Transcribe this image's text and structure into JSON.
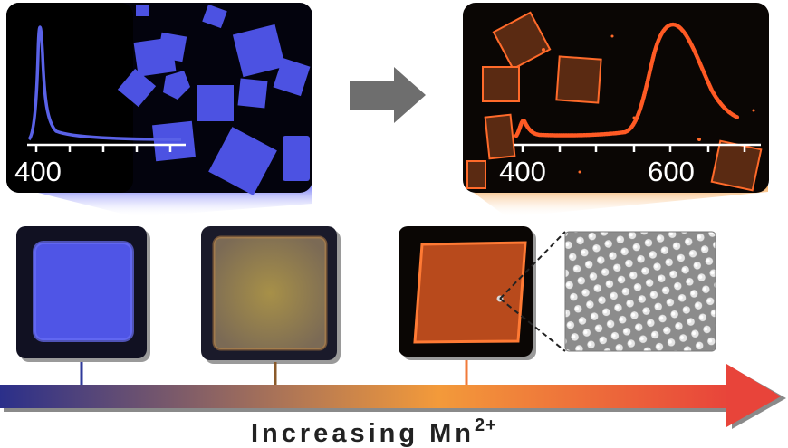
{
  "left_panel": {
    "axis_ticks": [
      "400"
    ],
    "emission_color": "#5a62e8"
  },
  "right_panel": {
    "axis_ticks": [
      "400",
      "600"
    ],
    "emission_color": "#ff5a24"
  },
  "arrow_color": "#6e6e6e",
  "crystal_tiles": [
    {
      "name": "blue-crystal",
      "color": "#4f55e6"
    },
    {
      "name": "mixed-crystal",
      "color": "#8d7a4a"
    },
    {
      "name": "orange-crystal",
      "color": "#c6511e"
    }
  ],
  "bottom": {
    "label": "Increasing Mn",
    "superscript": "2+",
    "gradient": [
      "#2b2f8a",
      "#f39a3a",
      "#e8443a"
    ]
  }
}
